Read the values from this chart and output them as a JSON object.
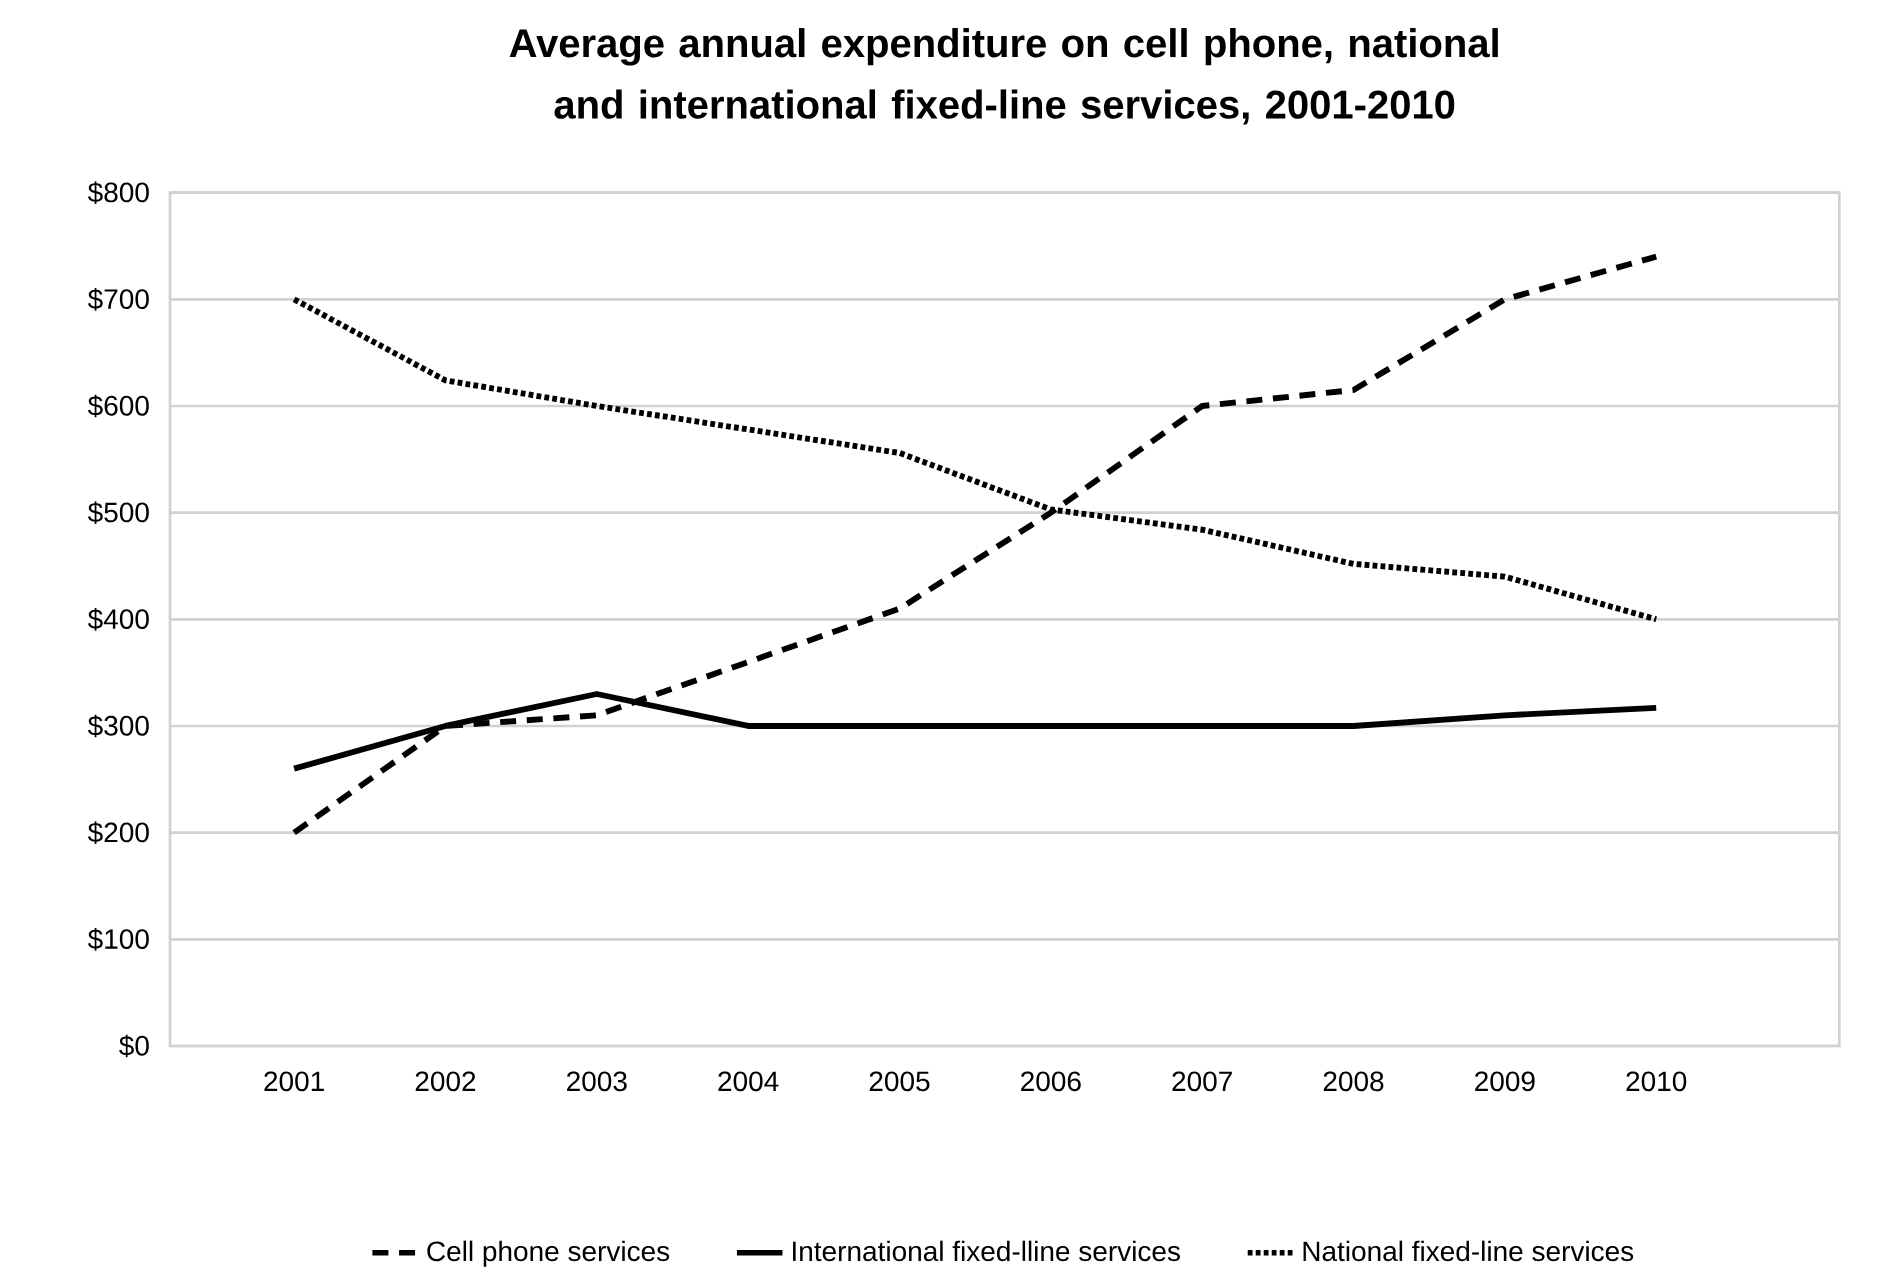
{
  "chart_data": {
    "type": "line",
    "title": "Average annual expenditure on cell phone, national and international fixed-line services, 2001-2010",
    "categories": [
      "2001",
      "2002",
      "2003",
      "2004",
      "2005",
      "2006",
      "2007",
      "2008",
      "2009",
      "2010"
    ],
    "series": [
      {
        "name": "Cell phone services",
        "color": "#000000",
        "line_style": "dashed",
        "values": [
          200,
          300,
          310,
          360,
          410,
          500,
          600,
          615,
          700,
          740
        ]
      },
      {
        "name": "International fixed-lline services",
        "color": "#000000",
        "line_style": "solid",
        "values": [
          260,
          300,
          330,
          300,
          300,
          300,
          300,
          300,
          310,
          317
        ]
      },
      {
        "name": "National fixed-line services",
        "color": "#000000",
        "line_style": "dotted",
        "values": [
          700,
          624,
          600,
          578,
          556,
          503,
          484,
          452,
          440,
          400
        ]
      }
    ],
    "ylim": [
      0,
      800
    ],
    "yticks": [
      {
        "value": 0,
        "label": "$0"
      },
      {
        "value": 100,
        "label": "$100"
      },
      {
        "value": 200,
        "label": "$200"
      },
      {
        "value": 300,
        "label": "$300"
      },
      {
        "value": 400,
        "label": "$400"
      },
      {
        "value": 500,
        "label": "$500"
      },
      {
        "value": 600,
        "label": "$600"
      },
      {
        "value": 700,
        "label": "$700"
      },
      {
        "value": 800,
        "label": "$800"
      }
    ],
    "grid": "y",
    "legend": "bottom",
    "marker": "none"
  }
}
